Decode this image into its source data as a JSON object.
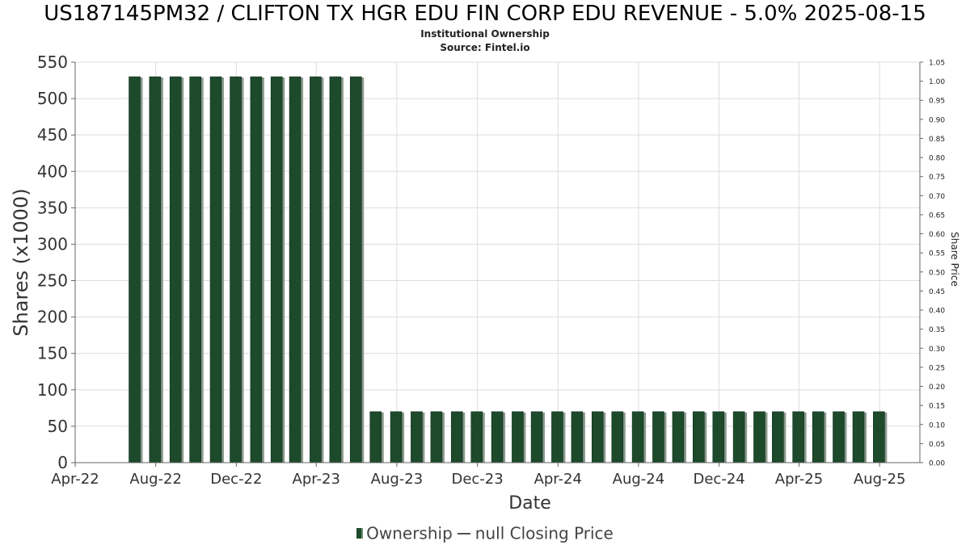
{
  "title": "US187145PM32 / CLIFTON TX HGR EDU FIN CORP EDU REVENUE - 5.0% 2025-08-15",
  "subtitle": "Institutional Ownership",
  "source": "Source: Fintel.io",
  "legend": {
    "ownership": "Ownership",
    "closing_price": "null Closing Price"
  },
  "colors": {
    "bar": "#1e4a2c",
    "bar_shadow": "#8c9a8e",
    "grid": "#dddddd",
    "axis": "#666666"
  },
  "chart_data": {
    "type": "bar",
    "title": "US187145PM32 / CLIFTON TX HGR EDU FIN CORP EDU REVENUE - 5.0% 2025-08-15",
    "xlabel": "Date",
    "ylabel": "Shares (x1000)",
    "y2label": "Share Price",
    "xlim": [
      "2022-04-01",
      "2025-10-01"
    ],
    "ylim": [
      0,
      550
    ],
    "y2lim": [
      0,
      1.05
    ],
    "grid": true,
    "legend_position": "bottom",
    "x_tick_labels": [
      "Apr-22",
      "Aug-22",
      "Dec-22",
      "Apr-23",
      "Aug-23",
      "Dec-23",
      "Apr-24",
      "Aug-24",
      "Dec-24",
      "Apr-25",
      "Aug-25"
    ],
    "x_tick_dates": [
      "2022-04-01",
      "2022-08-01",
      "2022-12-01",
      "2023-04-01",
      "2023-08-01",
      "2023-12-01",
      "2024-04-01",
      "2024-08-01",
      "2024-12-01",
      "2025-04-01",
      "2025-08-01"
    ],
    "y_ticks": [
      0,
      50,
      100,
      150,
      200,
      250,
      300,
      350,
      400,
      450,
      500,
      550
    ],
    "y2_ticks": [
      "0.00",
      "0.05",
      "0.10",
      "0.15",
      "0.20",
      "0.25",
      "0.30",
      "0.35",
      "0.40",
      "0.45",
      "0.50",
      "0.55",
      "0.60",
      "0.65",
      "0.70",
      "0.75",
      "0.80",
      "0.85",
      "0.90",
      "0.95",
      "1.00",
      "1.05"
    ],
    "series": [
      {
        "name": "Ownership",
        "x": [
          "2022-06-30",
          "2022-07-31",
          "2022-08-31",
          "2022-09-30",
          "2022-10-31",
          "2022-11-30",
          "2022-12-31",
          "2023-01-31",
          "2023-02-28",
          "2023-03-31",
          "2023-04-30",
          "2023-05-31",
          "2023-06-30",
          "2023-07-31",
          "2023-08-31",
          "2023-09-30",
          "2023-10-31",
          "2023-11-30",
          "2023-12-31",
          "2024-01-31",
          "2024-02-29",
          "2024-03-31",
          "2024-04-30",
          "2024-05-31",
          "2024-06-30",
          "2024-07-31",
          "2024-08-31",
          "2024-09-30",
          "2024-10-31",
          "2024-11-30",
          "2024-12-31",
          "2025-01-31",
          "2025-02-28",
          "2025-03-31",
          "2025-04-30",
          "2025-05-31",
          "2025-06-30",
          "2025-07-31"
        ],
        "values": [
          530,
          530,
          530,
          530,
          530,
          530,
          530,
          530,
          530,
          530,
          530,
          530,
          70,
          70,
          70,
          70,
          70,
          70,
          70,
          70,
          70,
          70,
          70,
          70,
          70,
          70,
          70,
          70,
          70,
          70,
          70,
          70,
          70,
          70,
          70,
          70,
          70,
          70
        ]
      }
    ]
  }
}
